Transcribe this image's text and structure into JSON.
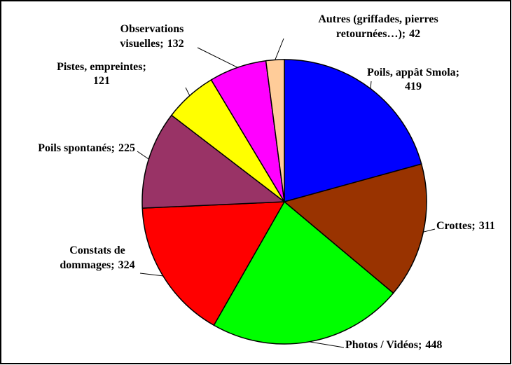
{
  "chart_data": {
    "type": "pie",
    "categories": [
      "Poils, appât Smola;",
      "Crottes;",
      "Photos / Vidéos;",
      "Constats de dommages;",
      "Poils spontanés;",
      "Pistes, empreintes;",
      "Observations visuelles;",
      "Autres (griffades, pierres retournées…);"
    ],
    "values": [
      419,
      311,
      448,
      324,
      225,
      121,
      132,
      42
    ],
    "colors": [
      "#0000ff",
      "#993300",
      "#00ff00",
      "#ff0000",
      "#993366",
      "#ffff00",
      "#ff00ff",
      "#ffcc99"
    ]
  }
}
